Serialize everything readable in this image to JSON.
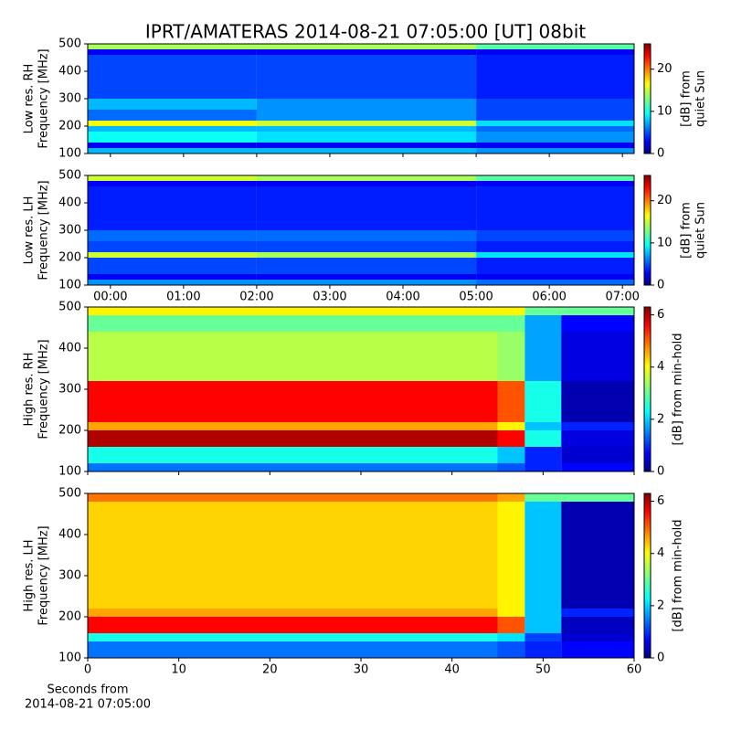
{
  "title": "IPRT/AMATERAS 2014-08-21 07:05:00 [UT]   08bit",
  "chart_data": [
    {
      "type": "heatmap",
      "ylabel": [
        "Low res. RH",
        "Frequency [MHz]"
      ],
      "xlim": [
        -0.31,
        7.16
      ],
      "xticks": [
        0,
        1,
        2,
        3,
        4,
        5,
        6,
        7
      ],
      "show_xtick_labels": false,
      "ylim": [
        100,
        500
      ],
      "yticks": [
        100,
        200,
        300,
        400,
        500
      ],
      "xbins": [
        -0.31,
        2,
        5,
        7.16
      ],
      "ybins": [
        100,
        120,
        140,
        180,
        200,
        220,
        260,
        300,
        460,
        480,
        500
      ],
      "z": [
        [
          8,
          8,
          7
        ],
        [
          3,
          3,
          3
        ],
        [
          10,
          9,
          7
        ],
        [
          8,
          8,
          6
        ],
        [
          16,
          15,
          9
        ],
        [
          6,
          7,
          5
        ],
        [
          8,
          7,
          5
        ],
        [
          5,
          5,
          4
        ],
        [
          3,
          3,
          3
        ],
        [
          14,
          14,
          12
        ]
      ],
      "clim": [
        0,
        26
      ],
      "cticks": [
        0,
        10,
        20
      ],
      "clabel": [
        "[dB] from",
        "quiet Sun"
      ]
    },
    {
      "type": "heatmap",
      "ylabel": [
        "Low res. LH",
        "Frequency [MHz]"
      ],
      "xlim": [
        -0.31,
        7.16
      ],
      "xticks": [
        {
          "value": 0,
          "label": "00:00"
        },
        {
          "value": 1,
          "label": "01:00"
        },
        {
          "value": 2,
          "label": "02:00"
        },
        {
          "value": 3,
          "label": "03:00"
        },
        {
          "value": 4,
          "label": "04:00"
        },
        {
          "value": 5,
          "label": "05:00"
        },
        {
          "value": 6,
          "label": "06:00"
        },
        {
          "value": 7,
          "label": "07:00"
        }
      ],
      "ylim": [
        100,
        500
      ],
      "yticks": [
        100,
        200,
        300,
        400,
        500
      ],
      "xbins": [
        -0.31,
        2,
        5,
        7.16
      ],
      "ybins": [
        100,
        120,
        140,
        180,
        200,
        220,
        260,
        300,
        460,
        480,
        500
      ],
      "z": [
        [
          7,
          7,
          6
        ],
        [
          3,
          3,
          3
        ],
        [
          5,
          5,
          4
        ],
        [
          5,
          5,
          4
        ],
        [
          15,
          14,
          9
        ],
        [
          5,
          5,
          4
        ],
        [
          6,
          6,
          5
        ],
        [
          4,
          4,
          4
        ],
        [
          3,
          3,
          3
        ],
        [
          15,
          14,
          12
        ]
      ],
      "clim": [
        0,
        26
      ],
      "cticks": [
        0,
        10,
        20
      ],
      "clabel": [
        "[dB] from",
        "quiet Sun"
      ]
    },
    {
      "type": "heatmap",
      "ylabel": [
        "High res. RH",
        "Frequency [MHz]"
      ],
      "xlim": [
        0,
        60
      ],
      "xticks": [
        0,
        10,
        20,
        30,
        40,
        50,
        60
      ],
      "show_xtick_labels": false,
      "ylim": [
        100,
        500
      ],
      "yticks": [
        100,
        200,
        300,
        400,
        500
      ],
      "xbins": [
        0,
        45,
        48,
        52,
        60
      ],
      "ybins": [
        100,
        120,
        160,
        200,
        220,
        320,
        440,
        480,
        500
      ],
      "z": [
        [
          1.5,
          1.3,
          1,
          0.8
        ],
        [
          2.5,
          2,
          1,
          0.5
        ],
        [
          6,
          5.5,
          2.5,
          0.6
        ],
        [
          4.5,
          4,
          2,
          1
        ],
        [
          5.5,
          5,
          2.5,
          0.3
        ],
        [
          3.5,
          3.3,
          1.8,
          0.6
        ],
        [
          3,
          3,
          1.8,
          0.8
        ],
        [
          4,
          4,
          3,
          3
        ]
      ],
      "clim": [
        0,
        6.3
      ],
      "cticks": [
        0,
        2,
        4,
        6
      ],
      "clabel": [
        "[dB] from min-hold"
      ]
    },
    {
      "type": "heatmap",
      "ylabel": [
        "High res. LH",
        "Frequency [MHz]"
      ],
      "xlabel": [
        "Seconds from",
        "2014-08-21 07:05:00"
      ],
      "xlim": [
        0,
        60
      ],
      "xticks": [
        0,
        10,
        20,
        30,
        40,
        50,
        60
      ],
      "ylim": [
        100,
        500
      ],
      "yticks": [
        100,
        200,
        300,
        400,
        500
      ],
      "xbins": [
        0,
        45,
        48,
        52,
        60
      ],
      "ybins": [
        100,
        140,
        160,
        200,
        220,
        480,
        500
      ],
      "z": [
        [
          1.5,
          1.3,
          1,
          0.8
        ],
        [
          2.5,
          2.2,
          1.2,
          0.5
        ],
        [
          5.5,
          5,
          2,
          0.4
        ],
        [
          4.5,
          4,
          2,
          1
        ],
        [
          4.2,
          4,
          2,
          0.3
        ],
        [
          4.8,
          4.5,
          3,
          3
        ]
      ],
      "clim": [
        0,
        6.3
      ],
      "cticks": [
        0,
        2,
        4,
        6
      ],
      "clabel": [
        "[dB] from min-hold"
      ]
    }
  ]
}
